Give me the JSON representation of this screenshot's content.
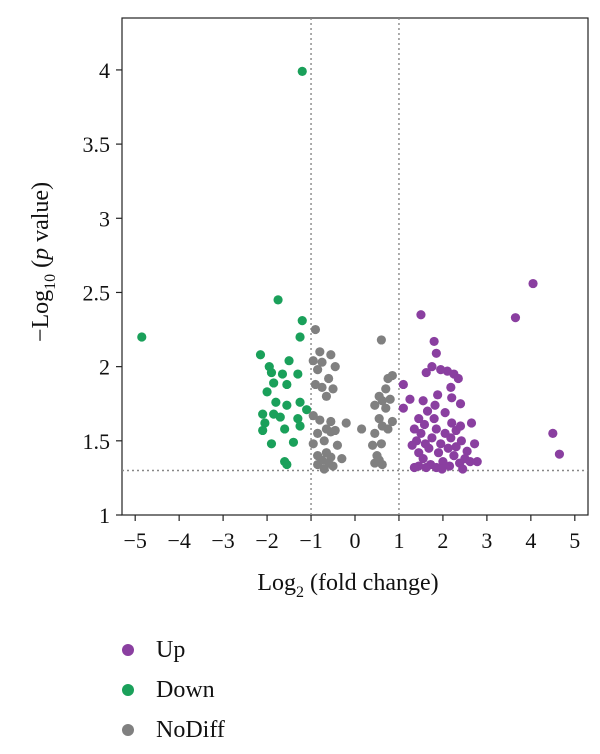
{
  "chart_data": {
    "type": "scatter",
    "title": "",
    "xlabel": "Log",
    "xlabel_sub": "2",
    "xlabel_rest": " (fold change)",
    "ylabel": "−Log",
    "ylabel_sub": "10",
    "ylabel_open": " (",
    "ylabel_italic": "p",
    "ylabel_rest": " value)",
    "xlim": [
      -5.3,
      5.3
    ],
    "ylim": [
      1,
      4.35
    ],
    "x_ticks": [
      -5,
      -4,
      -3,
      -2,
      -1,
      0,
      1,
      2,
      3,
      4,
      5
    ],
    "x_tick_labels": [
      "−5",
      "−4",
      "−3",
      "−2",
      "−1",
      "0",
      "1",
      "2",
      "3",
      "4",
      "5"
    ],
    "y_ticks": [
      1,
      1.5,
      2,
      2.5,
      3,
      3.5,
      4
    ],
    "y_tick_labels": [
      "1",
      "1.5",
      "2",
      "2.5",
      "3",
      "3.5",
      "4"
    ],
    "thresholds": {
      "vlines": [
        -1,
        1
      ],
      "hline": 1.3
    },
    "legend_position": "bottom-left",
    "series": [
      {
        "name": "Up",
        "color": "#8a3fa0",
        "points": [
          [
            1.5,
            2.35
          ],
          [
            1.8,
            2.17
          ],
          [
            1.85,
            2.09
          ],
          [
            2.25,
            1.95
          ],
          [
            2.1,
            1.97
          ],
          [
            1.95,
            1.98
          ],
          [
            1.75,
            2.0
          ],
          [
            2.35,
            1.92
          ],
          [
            1.62,
            1.96
          ],
          [
            2.18,
            1.86
          ],
          [
            1.88,
            1.81
          ],
          [
            2.2,
            1.79
          ],
          [
            1.55,
            1.77
          ],
          [
            1.82,
            1.74
          ],
          [
            2.4,
            1.75
          ],
          [
            1.65,
            1.7
          ],
          [
            2.05,
            1.69
          ],
          [
            1.8,
            1.65
          ],
          [
            2.2,
            1.62
          ],
          [
            1.45,
            1.65
          ],
          [
            1.58,
            1.61
          ],
          [
            2.65,
            1.62
          ],
          [
            1.85,
            1.58
          ],
          [
            2.3,
            1.57
          ],
          [
            1.5,
            1.55
          ],
          [
            2.05,
            1.55
          ],
          [
            1.75,
            1.52
          ],
          [
            2.18,
            1.52
          ],
          [
            1.6,
            1.48
          ],
          [
            2.42,
            1.5
          ],
          [
            1.95,
            1.48
          ],
          [
            1.4,
            1.5
          ],
          [
            2.3,
            1.46
          ],
          [
            1.3,
            1.47
          ],
          [
            2.12,
            1.45
          ],
          [
            1.68,
            1.45
          ],
          [
            2.55,
            1.43
          ],
          [
            1.45,
            1.42
          ],
          [
            1.9,
            1.42
          ],
          [
            2.25,
            1.4
          ],
          [
            2.5,
            1.38
          ],
          [
            1.55,
            1.38
          ],
          [
            2.0,
            1.36
          ],
          [
            2.38,
            1.35
          ],
          [
            1.72,
            1.34
          ],
          [
            1.45,
            1.33
          ],
          [
            2.15,
            1.33
          ],
          [
            1.85,
            1.32
          ],
          [
            2.62,
            1.36
          ],
          [
            1.98,
            1.31
          ],
          [
            2.45,
            1.31
          ],
          [
            1.62,
            1.32
          ],
          [
            1.35,
            1.32
          ],
          [
            2.78,
            1.36
          ],
          [
            1.1,
            1.88
          ],
          [
            1.1,
            1.72
          ],
          [
            1.25,
            1.78
          ],
          [
            2.4,
            1.6
          ],
          [
            2.72,
            1.48
          ],
          [
            1.35,
            1.58
          ],
          [
            3.65,
            2.33
          ],
          [
            4.05,
            2.56
          ],
          [
            4.5,
            1.55
          ],
          [
            4.65,
            1.41
          ]
        ]
      },
      {
        "name": "Down",
        "color": "#1aa05a",
        "points": [
          [
            -4.85,
            2.2
          ],
          [
            -1.2,
            3.99
          ],
          [
            -1.75,
            2.45
          ],
          [
            -1.2,
            2.31
          ],
          [
            -1.25,
            2.2
          ],
          [
            -2.15,
            2.08
          ],
          [
            -1.5,
            2.04
          ],
          [
            -1.95,
            2.0
          ],
          [
            -1.9,
            1.96
          ],
          [
            -1.65,
            1.95
          ],
          [
            -1.3,
            1.95
          ],
          [
            -1.85,
            1.89
          ],
          [
            -1.55,
            1.88
          ],
          [
            -2.0,
            1.83
          ],
          [
            -1.8,
            1.76
          ],
          [
            -1.25,
            1.76
          ],
          [
            -1.55,
            1.74
          ],
          [
            -1.1,
            1.71
          ],
          [
            -2.1,
            1.68
          ],
          [
            -1.85,
            1.68
          ],
          [
            -1.7,
            1.66
          ],
          [
            -1.3,
            1.65
          ],
          [
            -2.05,
            1.62
          ],
          [
            -1.25,
            1.6
          ],
          [
            -1.6,
            1.58
          ],
          [
            -2.1,
            1.57
          ],
          [
            -1.4,
            1.49
          ],
          [
            -1.9,
            1.48
          ],
          [
            -1.6,
            1.36
          ],
          [
            -1.55,
            1.34
          ]
        ]
      },
      {
        "name": "NoDiff",
        "color": "#808080",
        "points": [
          [
            -0.9,
            2.25
          ],
          [
            -0.8,
            2.1
          ],
          [
            -0.55,
            2.08
          ],
          [
            -0.95,
            2.04
          ],
          [
            -0.75,
            2.03
          ],
          [
            -0.45,
            2.0
          ],
          [
            -0.85,
            1.98
          ],
          [
            -0.6,
            1.92
          ],
          [
            -0.9,
            1.88
          ],
          [
            -0.75,
            1.86
          ],
          [
            -0.5,
            1.85
          ],
          [
            -0.65,
            1.8
          ],
          [
            -0.95,
            1.67
          ],
          [
            -0.8,
            1.64
          ],
          [
            -0.55,
            1.63
          ],
          [
            -0.2,
            1.62
          ],
          [
            -0.65,
            1.58
          ],
          [
            -0.45,
            1.57
          ],
          [
            -0.55,
            1.56
          ],
          [
            -0.85,
            1.55
          ],
          [
            -0.7,
            1.5
          ],
          [
            -0.95,
            1.48
          ],
          [
            -0.4,
            1.47
          ],
          [
            -0.65,
            1.42
          ],
          [
            -0.85,
            1.4
          ],
          [
            -0.55,
            1.39
          ],
          [
            -0.3,
            1.38
          ],
          [
            -0.75,
            1.37
          ],
          [
            -0.6,
            1.35
          ],
          [
            -0.85,
            1.34
          ],
          [
            -0.7,
            1.31
          ],
          [
            -0.5,
            1.33
          ],
          [
            0.6,
            2.18
          ],
          [
            0.75,
            1.92
          ],
          [
            0.85,
            1.94
          ],
          [
            0.7,
            1.85
          ],
          [
            0.55,
            1.8
          ],
          [
            0.8,
            1.78
          ],
          [
            0.62,
            1.77
          ],
          [
            0.45,
            1.74
          ],
          [
            0.7,
            1.72
          ],
          [
            0.55,
            1.65
          ],
          [
            0.85,
            1.63
          ],
          [
            0.62,
            1.6
          ],
          [
            0.75,
            1.58
          ],
          [
            0.15,
            1.58
          ],
          [
            0.45,
            1.55
          ],
          [
            0.6,
            1.48
          ],
          [
            0.4,
            1.47
          ],
          [
            0.5,
            1.4
          ],
          [
            0.55,
            1.37
          ],
          [
            0.45,
            1.35
          ],
          [
            0.62,
            1.34
          ]
        ]
      }
    ]
  }
}
